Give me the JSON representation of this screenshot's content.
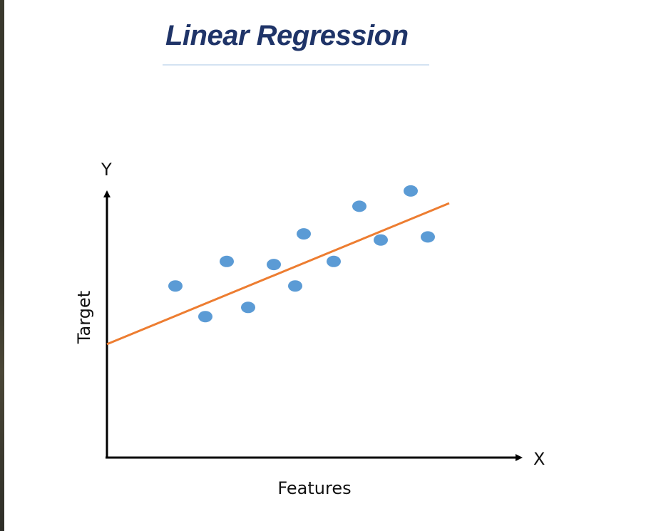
{
  "slide": {
    "title": "Linear Regression"
  },
  "chart_data": {
    "type": "scatter",
    "title": "Linear Regression",
    "xlabel": "Features",
    "ylabel": "Target",
    "x_axis_letter": "X",
    "y_axis_letter": "Y",
    "xlim": [
      0,
      10
    ],
    "ylim": [
      0,
      10
    ],
    "grid": false,
    "legend": "none",
    "colors": {
      "points": "#5b9bd5",
      "fit_line": "#ed7d31",
      "axes": "#000000",
      "title": "#1f3468"
    },
    "points": [
      {
        "x": 1.6,
        "y": 5.6
      },
      {
        "x": 2.3,
        "y": 4.6
      },
      {
        "x": 2.8,
        "y": 6.4
      },
      {
        "x": 3.3,
        "y": 4.9
      },
      {
        "x": 3.9,
        "y": 6.3
      },
      {
        "x": 4.4,
        "y": 5.6
      },
      {
        "x": 4.6,
        "y": 7.3
      },
      {
        "x": 5.3,
        "y": 6.4
      },
      {
        "x": 5.9,
        "y": 8.2
      },
      {
        "x": 6.4,
        "y": 7.1
      },
      {
        "x": 7.1,
        "y": 8.7
      },
      {
        "x": 7.5,
        "y": 7.2
      }
    ],
    "fit_line": {
      "x": [
        0,
        8.0
      ],
      "y": [
        3.7,
        8.3
      ]
    }
  }
}
